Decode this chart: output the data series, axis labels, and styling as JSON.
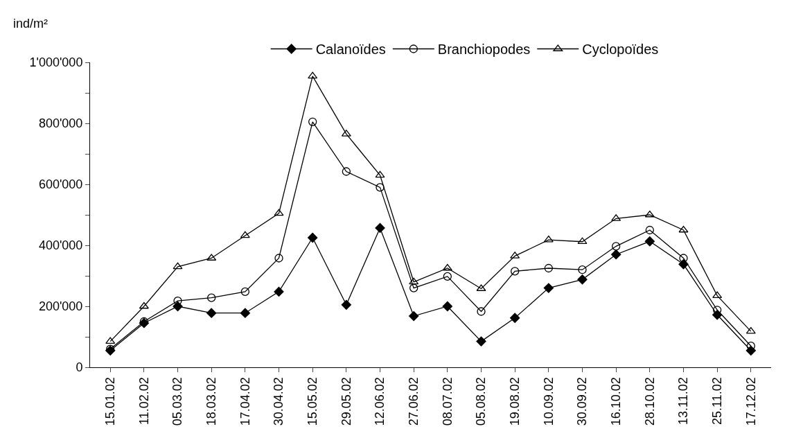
{
  "chart_data": {
    "type": "line",
    "ylabel": "ind/m²",
    "categories": [
      "15.01.02",
      "11.02.02",
      "05.03.02",
      "18.03.02",
      "17.04.02",
      "30.04.02",
      "15.05.02",
      "29.05.02",
      "12.06.02",
      "27.06.02",
      "08.07.02",
      "05.08.02",
      "19.08.02",
      "10.09.02",
      "30.09.02",
      "16.10.02",
      "28.10.02",
      "13.11.02",
      "25.11.02",
      "17.12.02"
    ],
    "series": [
      {
        "name": "Calanoïdes",
        "color": "#000000",
        "marker": "diamond",
        "values": [
          55000,
          145000,
          200000,
          178000,
          178000,
          248000,
          425000,
          205000,
          457000,
          168000,
          200000,
          85000,
          162000,
          260000,
          288000,
          370000,
          413000,
          338000,
          172000,
          55000
        ]
      },
      {
        "name": "Branchiopodes",
        "color": "#000000",
        "marker": "circle",
        "values": [
          60000,
          150000,
          218000,
          228000,
          248000,
          358000,
          805000,
          642000,
          590000,
          260000,
          298000,
          183000,
          315000,
          325000,
          320000,
          397000,
          450000,
          358000,
          188000,
          70000
        ]
      },
      {
        "name": "Cyclopoïdes",
        "color": "#000000",
        "marker": "triangle",
        "values": [
          85000,
          200000,
          330000,
          358000,
          432000,
          505000,
          955000,
          765000,
          630000,
          280000,
          325000,
          258000,
          365000,
          418000,
          412000,
          488000,
          500000,
          450000,
          235000,
          118000
        ]
      }
    ],
    "ylim": [
      0,
      1000000
    ],
    "yticks": [
      {
        "value": 0,
        "label": "0"
      },
      {
        "value": 100000,
        "label": null
      },
      {
        "value": 200000,
        "label": "200'000"
      },
      {
        "value": 300000,
        "label": null
      },
      {
        "value": 400000,
        "label": "400'000"
      },
      {
        "value": 500000,
        "label": null
      },
      {
        "value": 600000,
        "label": "600'000"
      },
      {
        "value": 700000,
        "label": null
      },
      {
        "value": 800000,
        "label": "800'000"
      },
      {
        "value": 900000,
        "label": null
      },
      {
        "value": 1000000,
        "label": "1'000'000"
      }
    ],
    "grid": false,
    "legend": "top",
    "line_style": "solid"
  }
}
